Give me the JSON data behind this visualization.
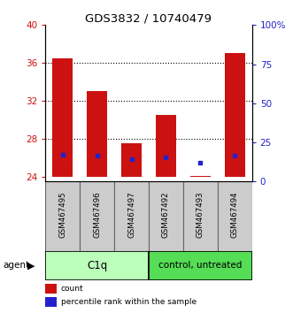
{
  "title": "GDS3832 / 10740479",
  "samples": [
    "GSM467495",
    "GSM467496",
    "GSM467497",
    "GSM467492",
    "GSM467493",
    "GSM467494"
  ],
  "red_bar_top": [
    36.5,
    33.0,
    27.5,
    30.5,
    24.1,
    37.0
  ],
  "red_bar_bottom": [
    24.0,
    24.0,
    24.0,
    24.0,
    24.0,
    24.0
  ],
  "blue_mark": [
    26.3,
    26.2,
    25.8,
    26.0,
    25.5,
    26.2
  ],
  "ylim_left": [
    23.5,
    40
  ],
  "ylim_right": [
    0,
    100
  ],
  "yticks_left": [
    24,
    28,
    32,
    36,
    40
  ],
  "yticks_right": [
    0,
    25,
    50,
    75,
    100
  ],
  "ytick_labels_right": [
    "0",
    "25",
    "50",
    "75",
    "100%"
  ],
  "red_color": "#cc1111",
  "blue_color": "#2222cc",
  "bar_width": 0.6,
  "sample_box_color": "#cccccc",
  "group1_color": "#bbffbb",
  "group2_color": "#55dd55",
  "legend_count": "count",
  "legend_pct": "percentile rank within the sample",
  "grid_yticks": [
    28,
    32,
    36
  ]
}
